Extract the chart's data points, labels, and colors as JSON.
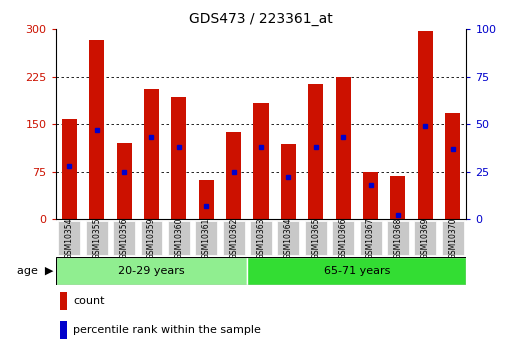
{
  "title": "GDS473 / 223361_at",
  "samples": [
    "GSM10354",
    "GSM10355",
    "GSM10356",
    "GSM10359",
    "GSM10360",
    "GSM10361",
    "GSM10362",
    "GSM10363",
    "GSM10364",
    "GSM10365",
    "GSM10366",
    "GSM10367",
    "GSM10368",
    "GSM10369",
    "GSM10370"
  ],
  "counts": [
    158,
    283,
    120,
    205,
    193,
    62,
    138,
    183,
    118,
    213,
    225,
    75,
    68,
    297,
    168
  ],
  "percentiles": [
    28,
    47,
    25,
    43,
    38,
    7,
    25,
    38,
    22,
    38,
    43,
    18,
    2,
    49,
    37
  ],
  "groups": [
    {
      "label": "20-29 years",
      "start": 0,
      "end": 7,
      "color": "#90EE90"
    },
    {
      "label": "65-71 years",
      "start": 7,
      "end": 15,
      "color": "#33DD33"
    }
  ],
  "group_label": "age",
  "ylim_left": [
    0,
    300
  ],
  "ylim_right": [
    0,
    100
  ],
  "yticks_left": [
    0,
    75,
    150,
    225,
    300
  ],
  "yticks_right": [
    0,
    25,
    50,
    75,
    100
  ],
  "bar_color": "#CC1100",
  "percentile_color": "#0000CC",
  "tick_color_left": "#CC1100",
  "tick_color_right": "#0000CC",
  "legend_count_label": "count",
  "legend_pct_label": "percentile rank within the sample",
  "bar_width": 0.55,
  "xtick_bg": "#C8C8C8"
}
